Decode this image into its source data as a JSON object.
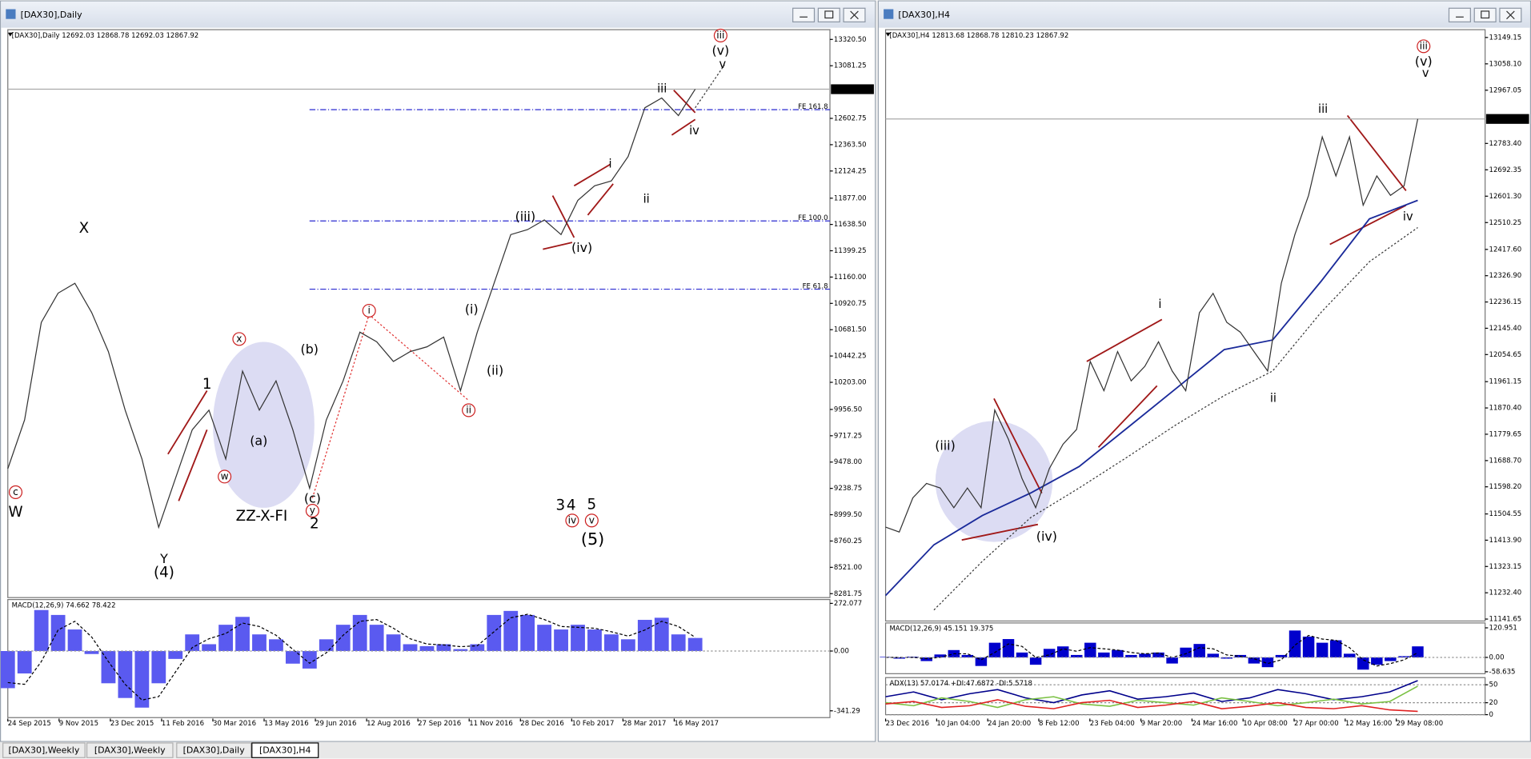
{
  "windows": [
    {
      "title": "[DAX30],Daily",
      "header": "[DAX30],Daily  12692.03 12868.78 12692.03 12867.92",
      "price": {
        "type": "line",
        "color": "#333333",
        "current": 12867.92,
        "categories": [
          "24 Sep 2015",
          "9 Nov 2015",
          "23 Dec 2015",
          "11 Feb 2016",
          "30 Mar 2016",
          "13 May 2016",
          "29 Jun 2016",
          "12 Aug 2016",
          "27 Sep 2016",
          "11 Nov 2016",
          "28 Dec 2016",
          "10 Feb 2017",
          "28 Mar 2017",
          "16 May 2017"
        ],
        "values": [
          9418,
          9861,
          10748,
          11014,
          11103,
          10837,
          10482,
          9950,
          9506,
          8885,
          9329,
          9772,
          9950,
          9506,
          10305,
          9950,
          10216,
          9772,
          9240,
          9861,
          10216,
          10659,
          10571,
          10393,
          10482,
          10526,
          10615,
          10127,
          10659,
          11103,
          11546,
          11591,
          11679,
          11546,
          11857,
          11990,
          12034,
          12256,
          12699,
          12788,
          12628,
          12867.92
        ],
        "ylim": [
          8246,
          13409
        ],
        "yticks": [
          {
            "value": 13320.5,
            "label": "13320.50"
          },
          13081.25,
          12602.75,
          {
            "value": 12363.5,
            "label": "12363.50"
          },
          12124.25,
          {
            "value": 11877,
            "label": "11877.00"
          },
          {
            "value": 11638.5,
            "label": "11638.50"
          },
          11399.25,
          {
            "value": 11160,
            "label": "11160.00"
          },
          10920.75,
          {
            "value": 10681.5,
            "label": "10681.50"
          },
          10442.25,
          {
            "value": 10203,
            "label": "10203.00"
          },
          {
            "value": 9956.5,
            "label": "9956.50"
          },
          9717.25,
          {
            "value": 9478,
            "label": "9478.00"
          },
          9238.75,
          {
            "value": 8999.5,
            "label": "8999.50"
          },
          8760.25,
          {
            "value": 8521,
            "label": "8521.00"
          },
          8281.75
        ],
        "fib_levels": [
          {
            "label": "FE 161.8",
            "value": 12682
          },
          {
            "label": "FE 100.0",
            "value": 11670
          },
          {
            "label": "FE 61.8",
            "value": 11050
          }
        ]
      },
      "annotations": [
        "c",
        "W",
        "X",
        "Y",
        "(4)",
        "1",
        "x",
        "w",
        "(a)",
        "(b)",
        "(c)",
        "y",
        "2",
        "ZZ-X-FI",
        "i",
        "ii",
        "(i)",
        "(ii)",
        "(iii)",
        "(iv)",
        "i",
        "ii",
        "iii",
        "iv",
        "iii",
        "(v)",
        "v",
        "3",
        "4",
        "5",
        "iv",
        "v",
        "(5)"
      ],
      "macd": {
        "type": "bar",
        "label": "MACD(12,26,9) 74.662 78.422",
        "color": "#5a5af0",
        "values": [
          -212,
          -128,
          234,
          206,
          123,
          -17,
          -184,
          -268,
          -323,
          -184,
          -45,
          95,
          39,
          150,
          195,
          95,
          67,
          -72,
          -100,
          67,
          150,
          206,
          150,
          95,
          39,
          28,
          39,
          11,
          39,
          206,
          229,
          206,
          150,
          123,
          150,
          123,
          95,
          67,
          178,
          190,
          95,
          74.662
        ],
        "signal": [
          -180,
          -190,
          -60,
          120,
          170,
          80,
          -60,
          -190,
          -280,
          -260,
          -120,
          20,
          70,
          100,
          160,
          140,
          90,
          10,
          -70,
          -10,
          90,
          170,
          180,
          130,
          70,
          40,
          35,
          25,
          30,
          110,
          190,
          210,
          180,
          140,
          135,
          130,
          110,
          85,
          120,
          170,
          140,
          78.422
        ],
        "ylim": [
          -380,
          294
        ],
        "yticks": [
          272.077,
          {
            "value": 0,
            "label": "0.00"
          },
          -341.29
        ]
      }
    },
    {
      "title": "[DAX30],H4",
      "header": "[DAX30],H4  12813.68 12868.78 12810.23 12867.92",
      "price": {
        "type": "line",
        "color": "#333333",
        "current": 12867.92,
        "categories": [
          "23 Dec 2016",
          "10 Jan 04:00",
          "24 Jan 20:00",
          "8 Feb 12:00",
          "23 Feb 04:00",
          "9 Mar 20:00",
          "24 Mar 16:00",
          "10 Apr 08:00",
          "27 Apr 00:00",
          "12 May 16:00",
          "29 May 08:00"
        ],
        "values": [
          11459,
          11442,
          11560,
          11610,
          11594,
          11526,
          11594,
          11526,
          11863,
          11762,
          11627,
          11526,
          11661,
          11745,
          11796,
          12031,
          11930,
          12065,
          11964,
          12014,
          12099,
          11998,
          11930,
          12199,
          12266,
          12166,
          12132,
          12065,
          11998,
          12301,
          12469,
          12604,
          12806,
          12671,
          12806,
          12570,
          12671,
          12604,
          12637,
          12867.92
        ],
        "ma": [
          {
            "color": "#1a2a9a",
            "values": [
              11223,
              11398,
              11499,
              11577,
              11668,
              11802,
              11937,
              12072,
              12105,
              12307,
              12523,
              12587
            ]
          },
          {
            "color": "#333333",
            "values": [
              null,
              11173,
              11341,
              11492,
              11594,
              11701,
              11812,
              11913,
              11998,
              12200,
              12375,
              12493
            ]
          }
        ],
        "ylim": [
          11135,
          13176
        ],
        "yticks": [
          13149.15,
          {
            "value": 13058.1,
            "label": "13058.10"
          },
          12967.05,
          {
            "value": 12783.4,
            "label": "12783.40"
          },
          12692.35,
          {
            "value": 12601.3,
            "label": "12601.30"
          },
          12510.25,
          {
            "value": 12417.6,
            "label": "12417.60"
          },
          {
            "value": 12326.9,
            "label": "12326.90"
          },
          12236.15,
          {
            "value": 12145.4,
            "label": "12145.40"
          },
          12054.65,
          11961.15,
          {
            "value": 11870.4,
            "label": "11870.40"
          },
          11779.65,
          {
            "value": 11688.7,
            "label": "11688.70"
          },
          {
            "value": 11598.2,
            "label": "11598.20"
          },
          11504.55,
          {
            "value": 11413.9,
            "label": "11413.90"
          },
          11323.15,
          {
            "value": 11232.4,
            "label": "11232.40"
          },
          11141.65
        ]
      },
      "annotations": [
        "iii",
        "(v)",
        "v",
        "iii",
        "iv",
        "i",
        "ii",
        "(iii)",
        "(iv)"
      ],
      "macd": {
        "type": "bar",
        "label": "MACD(12,26,9) 45.151 19.375",
        "color": "#0000cc",
        "values": [
          2,
          -5,
          3,
          -15,
          12,
          30,
          10,
          -35,
          60,
          75,
          20,
          -30,
          35,
          45,
          10,
          60,
          20,
          30,
          10,
          15,
          20,
          -25,
          40,
          55,
          15,
          -5,
          10,
          -25,
          -40,
          10,
          110,
          85,
          60,
          70,
          15,
          -50,
          -30,
          -15,
          5,
          45.151
        ],
        "signal": [
          0,
          0,
          0,
          -5,
          0,
          15,
          15,
          -10,
          20,
          55,
          45,
          0,
          10,
          35,
          25,
          40,
          35,
          30,
          20,
          15,
          18,
          0,
          15,
          40,
          35,
          10,
          5,
          -5,
          -25,
          -10,
          50,
          90,
          75,
          70,
          40,
          -10,
          -35,
          -25,
          -10,
          19.375
        ],
        "ylim": [
          -66.6,
          140.9
        ],
        "yticks": [
          120.951,
          {
            "value": 0,
            "label": "0.00"
          },
          -58.635
        ]
      },
      "adx": {
        "type": "line",
        "label": "ADX(13) 57.0174 +DI:47.6872 -DI:5.5718",
        "ylim": [
          0,
          62
        ],
        "yticks": [
          50,
          20,
          0
        ],
        "series": [
          {
            "color": "#00008b",
            "values": [
              30,
              38,
              25,
              35,
              42,
              28,
              20,
              33,
              40,
              26,
              30,
              36,
              22,
              28,
              42,
              35,
              25,
              30,
              38,
              57.0174
            ]
          },
          {
            "color": "#7ac143",
            "values": [
              20,
              15,
              28,
              22,
              12,
              25,
              30,
              18,
              14,
              24,
              20,
              16,
              28,
              22,
              15,
              20,
              26,
              18,
              22,
              47.6872
            ]
          },
          {
            "color": "#e02020",
            "values": [
              18,
              22,
              12,
              15,
              25,
              14,
              10,
              20,
              24,
              12,
              16,
              22,
              10,
              14,
              20,
              12,
              10,
              15,
              8,
              5.5718
            ]
          }
        ]
      }
    }
  ],
  "tabs": [
    "[DAX30],Weekly",
    "[DAX30],Weekly",
    "[DAX30],Daily",
    "[DAX30],H4"
  ]
}
